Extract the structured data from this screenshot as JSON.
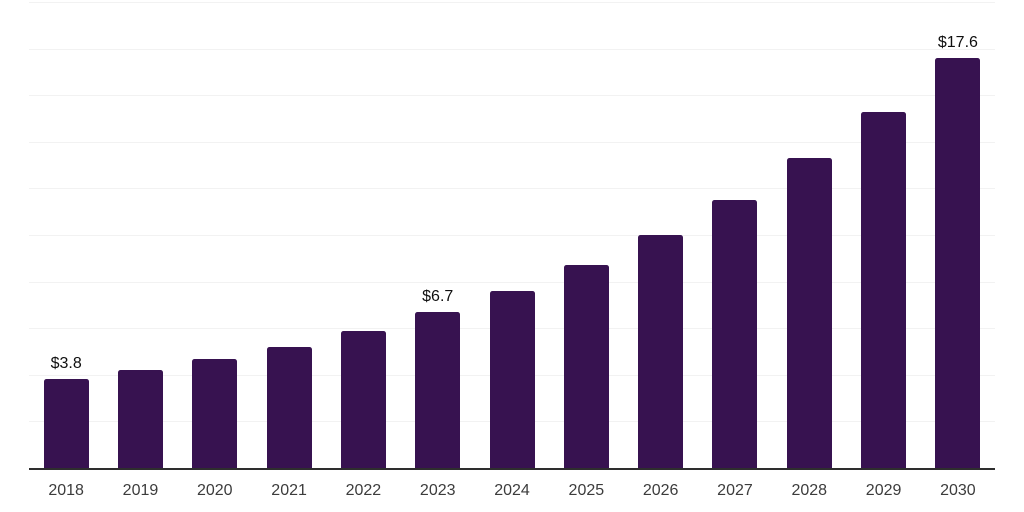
{
  "chart_data": {
    "type": "bar",
    "title": "",
    "xlabel": "",
    "ylabel": "",
    "categories": [
      "2018",
      "2019",
      "2020",
      "2021",
      "2022",
      "2023",
      "2024",
      "2025",
      "2026",
      "2027",
      "2028",
      "2029",
      "2030"
    ],
    "values": [
      3.8,
      4.2,
      4.7,
      5.2,
      5.9,
      6.7,
      7.6,
      8.7,
      10.0,
      11.5,
      13.3,
      15.3,
      17.6
    ],
    "bar_labels": [
      "$3.8",
      "",
      "",
      "",
      "",
      "$6.7",
      "",
      "",
      "",
      "",
      "",
      "",
      "$17.6"
    ],
    "ylim": [
      0,
      20
    ],
    "gridline_step": 2,
    "grid": true,
    "legend": false,
    "y_tick_labels_visible": false,
    "colors": {
      "bar": "#371250",
      "grid": "#f2f2f2",
      "axis": "#2e2e2e",
      "value_label": "#0f0f0f",
      "tick_label": "#3c3c3c",
      "background": "#ffffff"
    }
  }
}
